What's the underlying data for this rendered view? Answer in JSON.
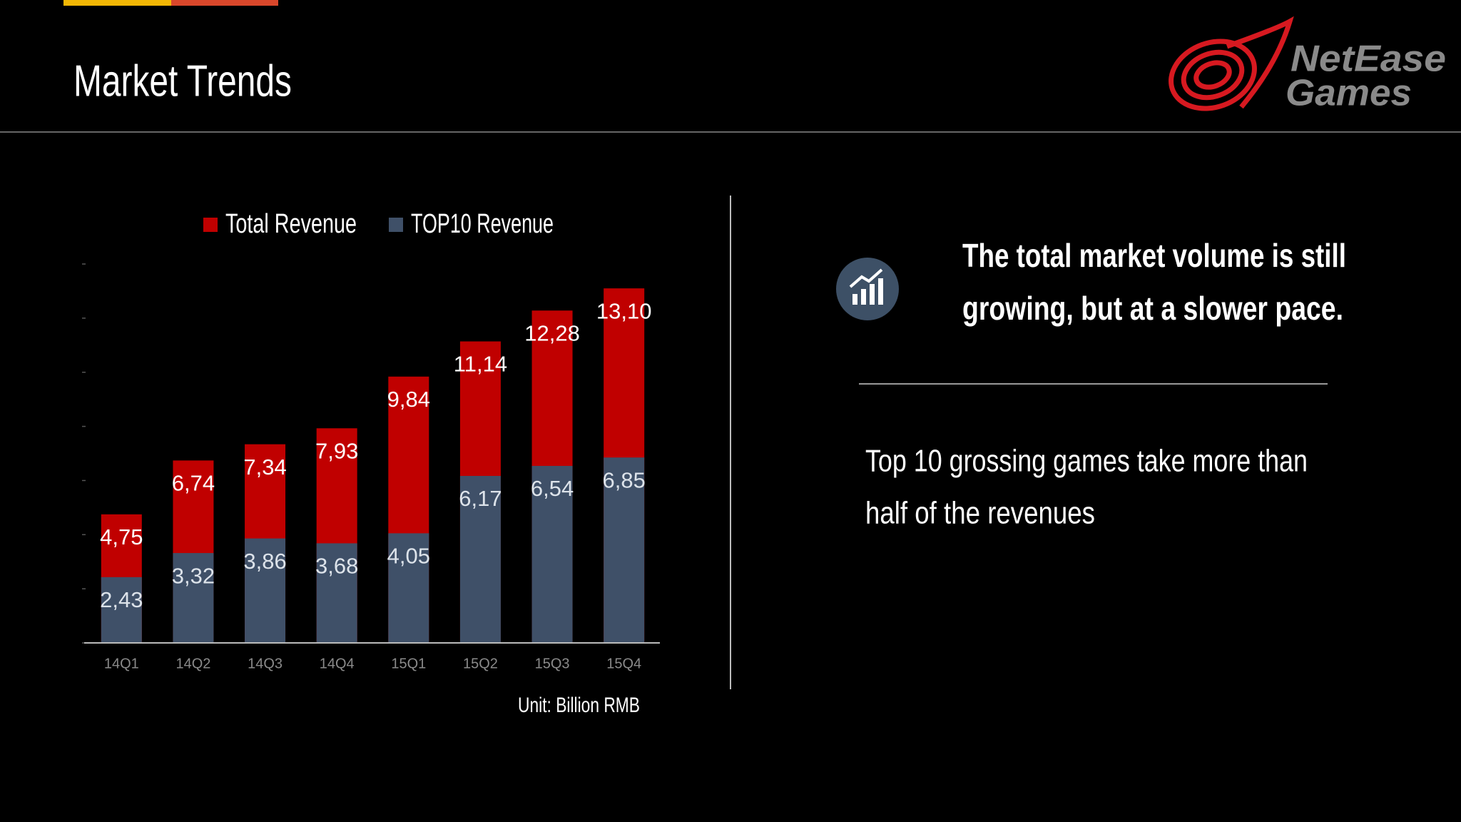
{
  "title": "Market Trends",
  "logo": [
    "NetEase",
    "Games"
  ],
  "headline": [
    "The total market volume is still",
    "growing,  but at a slower pace."
  ],
  "body": [
    "Top 10 grossing games take more than",
    "half of the revenues"
  ],
  "chart_data": {
    "type": "bar",
    "categories": [
      "14Q1",
      "14Q2",
      "14Q3",
      "14Q4",
      "15Q1",
      "15Q2",
      "15Q3",
      "15Q4"
    ],
    "series": [
      {
        "name": "Total Revenue",
        "color": "#c00000",
        "values": [
          4.75,
          6.74,
          7.34,
          7.93,
          9.84,
          11.14,
          12.28,
          13.1
        ],
        "value_labels": [
          "4,75",
          "6,74",
          "7,34",
          "7,93",
          "9,84",
          "11,14",
          "12,28",
          "13,10"
        ]
      },
      {
        "name": "TOP10 Revenue",
        "color": "#3f5068",
        "values": [
          2.43,
          3.32,
          3.86,
          3.68,
          4.05,
          6.17,
          6.54,
          6.85
        ],
        "value_labels": [
          "2,43",
          "3,32",
          "3,86",
          "3,68",
          "4,05",
          "6,17",
          "6,54",
          "6,85"
        ]
      }
    ],
    "ylim": [
      0,
      14
    ],
    "yticks": [
      0,
      2,
      4,
      6,
      8,
      10,
      12,
      14
    ],
    "note": "Unit: Billion RMB"
  }
}
